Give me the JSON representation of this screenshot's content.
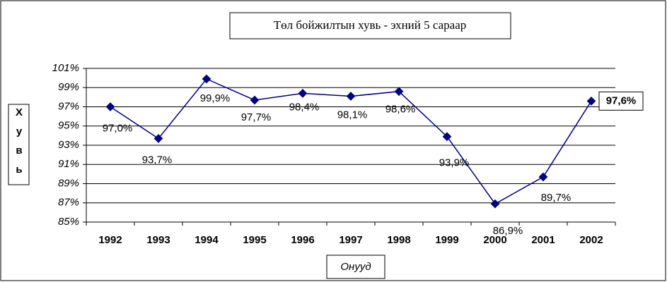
{
  "chart_data": {
    "type": "line",
    "title": "Төл бойжилтын хувь - эхний 5 сараар",
    "y_label": "Хувь",
    "x_label": "Онууд",
    "categories": [
      "1992",
      "1993",
      "1994",
      "1995",
      "1996",
      "1997",
      "1998",
      "1999",
      "2000",
      "2001",
      "2002"
    ],
    "values": [
      97.0,
      93.7,
      99.9,
      97.7,
      98.4,
      98.1,
      98.6,
      93.9,
      86.9,
      89.7,
      97.6
    ],
    "value_labels": [
      "97,0%",
      "93,7%",
      "99,9%",
      "97,7%",
      "98,4%",
      "98,1%",
      "98,6%",
      "93,9%",
      "86,9%",
      "89,7%",
      "97,6%"
    ],
    "color": "#000080",
    "ylim": [
      85,
      101
    ],
    "yticks": [
      {
        "value": 85,
        "label": "85%"
      },
      {
        "value": 87,
        "label": "87%"
      },
      {
        "value": 89,
        "label": "89%"
      },
      {
        "value": 91,
        "label": "91%"
      },
      {
        "value": 93,
        "label": "93%"
      },
      {
        "value": 95,
        "label": "95%"
      },
      {
        "value": 97,
        "label": "97%"
      },
      {
        "value": 99,
        "label": "99%"
      },
      {
        "value": 101,
        "label": "101%"
      }
    ],
    "grid": true
  }
}
